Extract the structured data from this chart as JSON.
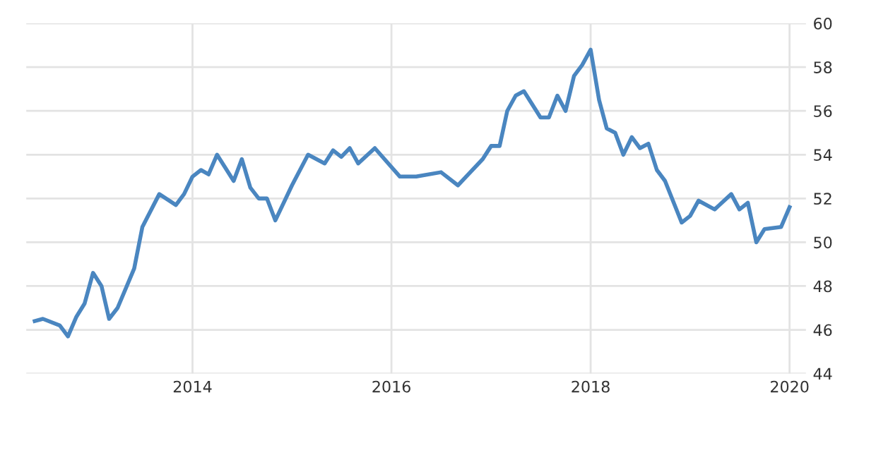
{
  "chart_data": {
    "type": "line",
    "x": [
      "2012-06",
      "2012-07",
      "2012-09",
      "2012-10",
      "2012-11",
      "2012-12",
      "2013-01",
      "2013-02",
      "2013-03",
      "2013-04",
      "2013-06",
      "2013-07",
      "2013-09",
      "2013-11",
      "2013-12",
      "2014-01",
      "2014-02",
      "2014-03",
      "2014-04",
      "2014-06",
      "2014-07",
      "2014-08",
      "2014-09",
      "2014-10",
      "2014-11",
      "2015-01",
      "2015-03",
      "2015-05",
      "2015-06",
      "2015-07",
      "2015-08",
      "2015-09",
      "2015-11",
      "2016-02",
      "2016-04",
      "2016-07",
      "2016-09",
      "2016-12",
      "2017-01",
      "2017-02",
      "2017-03",
      "2017-04",
      "2017-05",
      "2017-07",
      "2017-08",
      "2017-09",
      "2017-10",
      "2017-11",
      "2017-12",
      "2018-01",
      "2018-02",
      "2018-03",
      "2018-04",
      "2018-05",
      "2018-06",
      "2018-07",
      "2018-08",
      "2018-09",
      "2018-10",
      "2018-12",
      "2019-01",
      "2019-02",
      "2019-04",
      "2019-06",
      "2019-07",
      "2019-08",
      "2019-09",
      "2019-10",
      "2019-12",
      "2020-01"
    ],
    "series": [
      {
        "color": "#4a86c0",
        "values": [
          46.4,
          46.5,
          46.2,
          45.7,
          46.6,
          47.2,
          48.6,
          48.0,
          46.5,
          47.0,
          48.8,
          50.7,
          52.2,
          51.7,
          52.2,
          53.0,
          53.3,
          53.1,
          54.0,
          52.8,
          53.8,
          52.5,
          52.0,
          52.0,
          51.0,
          52.6,
          54.0,
          53.6,
          54.2,
          53.9,
          54.3,
          53.6,
          54.3,
          53.0,
          53.0,
          53.2,
          52.6,
          53.8,
          54.4,
          54.4,
          56.0,
          56.7,
          56.9,
          55.7,
          55.7,
          56.7,
          56.0,
          57.6,
          58.1,
          58.8,
          56.5,
          55.2,
          55.0,
          54.0,
          54.8,
          54.3,
          54.5,
          53.3,
          52.8,
          50.9,
          51.2,
          51.9,
          51.5,
          52.2,
          51.5,
          51.8,
          50.0,
          50.6,
          50.7,
          51.6
        ]
      }
    ],
    "xlim": [
      "2012-05",
      "2020-03"
    ],
    "xticks": [
      {
        "value": "2014",
        "label": "2014"
      },
      {
        "value": "2016",
        "label": "2016"
      },
      {
        "value": "2018",
        "label": "2018"
      },
      {
        "value": "2020",
        "label": "2020"
      }
    ],
    "ylim": [
      44,
      60
    ],
    "yticks": [
      44,
      46,
      48,
      50,
      52,
      54,
      56,
      58,
      60
    ],
    "grid": true,
    "marker": "none",
    "line_style": "solid"
  }
}
